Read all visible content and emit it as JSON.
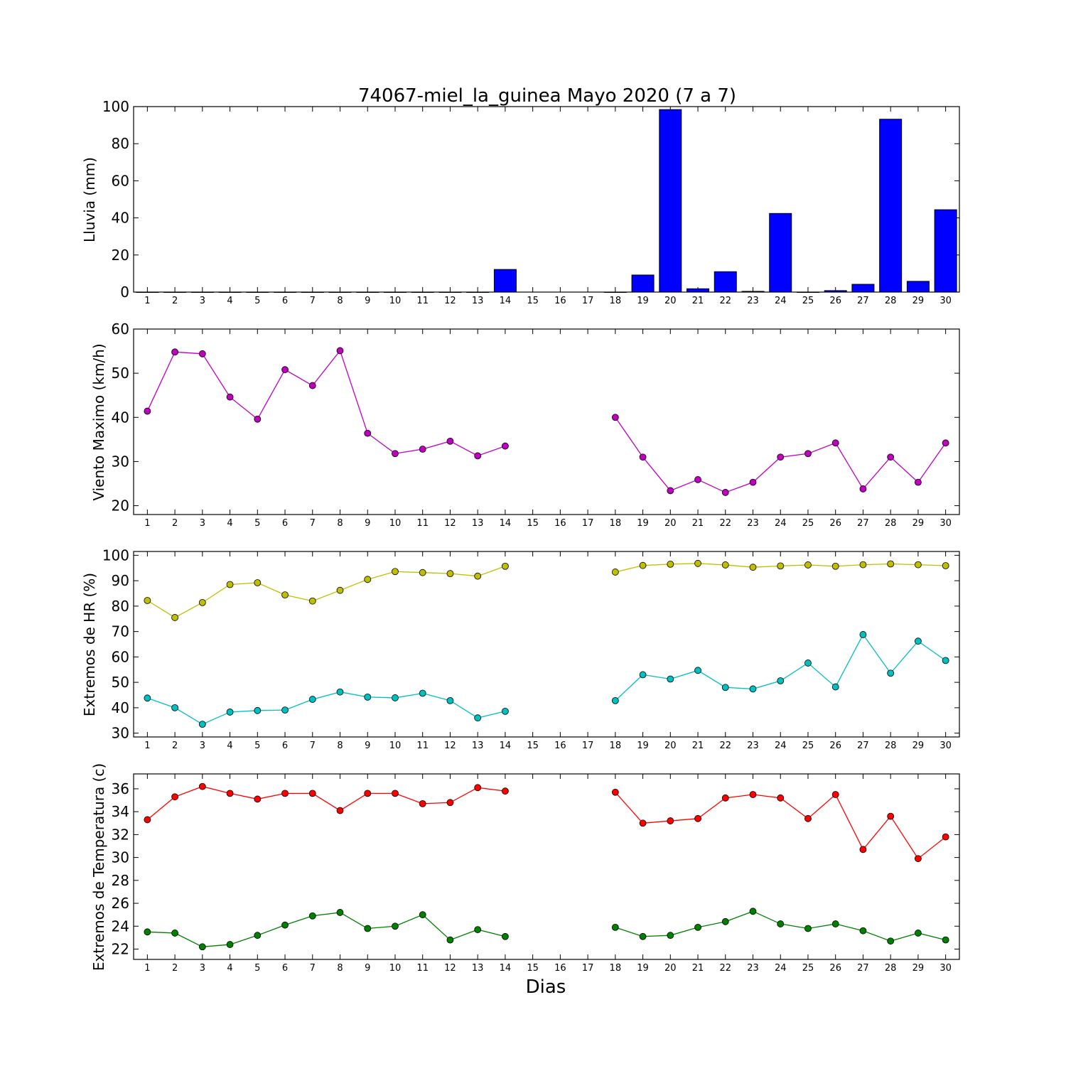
{
  "chart_data": [
    {
      "type": "bar",
      "title": "74067-miel_la_guinea Mayo 2020  (7 a 7)",
      "ylabel": "Lluvia (mm)",
      "ylim": [
        0,
        100
      ],
      "yticks": [
        0,
        20,
        40,
        60,
        80,
        100
      ],
      "x": [
        1,
        2,
        3,
        4,
        5,
        6,
        7,
        8,
        9,
        10,
        11,
        12,
        13,
        14,
        15,
        16,
        17,
        18,
        19,
        20,
        21,
        22,
        23,
        24,
        25,
        26,
        27,
        28,
        29,
        30
      ],
      "series": [
        {
          "color": "#0000ff",
          "values": [
            0,
            0,
            0,
            0,
            0,
            0,
            0,
            0,
            0,
            0,
            0,
            0,
            0,
            12.2,
            null,
            null,
            null,
            0,
            9.2,
            98.4,
            1.8,
            11.0,
            0.4,
            42.4,
            0,
            0.8,
            4.2,
            93.2,
            5.8,
            44.4
          ]
        }
      ]
    },
    {
      "type": "line",
      "ylabel": "Viento Maximo (km/h)",
      "ylim": [
        18,
        60
      ],
      "yticks": [
        20,
        30,
        40,
        50,
        60
      ],
      "x": [
        1,
        2,
        3,
        4,
        5,
        6,
        7,
        8,
        9,
        10,
        11,
        12,
        13,
        14,
        15,
        16,
        17,
        18,
        19,
        20,
        21,
        22,
        23,
        24,
        25,
        26,
        27,
        28,
        29,
        30
      ],
      "series": [
        {
          "color": "#bf00bf",
          "values": [
            41.4,
            54.8,
            54.4,
            44.6,
            39.6,
            50.8,
            47.2,
            55.1,
            36.4,
            31.8,
            32.8,
            34.6,
            31.3,
            33.5,
            null,
            null,
            null,
            40.0,
            31.0,
            23.4,
            25.9,
            23.0,
            25.3,
            31.0,
            31.8,
            34.2,
            23.8,
            31.0,
            25.3,
            34.2
          ]
        }
      ]
    },
    {
      "type": "line",
      "ylabel": "Extremos de HR (%)",
      "ylim": [
        28.5,
        101.5
      ],
      "yticks": [
        30,
        40,
        50,
        60,
        70,
        80,
        90,
        100
      ],
      "x": [
        1,
        2,
        3,
        4,
        5,
        6,
        7,
        8,
        9,
        10,
        11,
        12,
        13,
        14,
        15,
        16,
        17,
        18,
        19,
        20,
        21,
        22,
        23,
        24,
        25,
        26,
        27,
        28,
        29,
        30
      ],
      "series": [
        {
          "color": "#bfbf00",
          "values": [
            82.2,
            75.5,
            81.4,
            88.5,
            89.2,
            84.4,
            82.0,
            86.2,
            90.5,
            93.6,
            93.2,
            92.8,
            91.8,
            95.7,
            null,
            null,
            null,
            93.4,
            96.0,
            96.5,
            96.8,
            96.2,
            95.3,
            95.8,
            96.2,
            95.7,
            96.3,
            96.6,
            96.3,
            95.9
          ]
        },
        {
          "color": "#00bfbf",
          "values": [
            43.8,
            40.0,
            33.5,
            38.3,
            38.9,
            39.1,
            43.3,
            46.2,
            44.2,
            43.9,
            45.7,
            42.8,
            36.0,
            38.6,
            null,
            null,
            null,
            42.8,
            53.0,
            51.3,
            54.7,
            48.0,
            47.4,
            50.6,
            57.6,
            48.2,
            68.8,
            53.6,
            66.2,
            58.6
          ]
        }
      ]
    },
    {
      "type": "line",
      "ylabel": "Extremos de Temperatura (c)",
      "ylim": [
        21.1,
        37.3
      ],
      "yticks": [
        22,
        24,
        26,
        28,
        30,
        32,
        34,
        36
      ],
      "x": [
        1,
        2,
        3,
        4,
        5,
        6,
        7,
        8,
        9,
        10,
        11,
        12,
        13,
        14,
        15,
        16,
        17,
        18,
        19,
        20,
        21,
        22,
        23,
        24,
        25,
        26,
        27,
        28,
        29,
        30
      ],
      "series": [
        {
          "color": "#ff0000",
          "values": [
            33.3,
            35.3,
            36.2,
            35.6,
            35.1,
            35.6,
            35.6,
            34.1,
            35.6,
            35.6,
            34.7,
            34.8,
            36.1,
            35.8,
            null,
            null,
            null,
            35.7,
            33.0,
            33.2,
            33.4,
            35.2,
            35.5,
            35.2,
            33.4,
            35.5,
            30.7,
            33.6,
            29.9,
            31.8
          ]
        },
        {
          "color": "#008000",
          "values": [
            23.5,
            23.4,
            22.2,
            22.4,
            23.2,
            24.1,
            24.9,
            25.2,
            23.8,
            24.0,
            25.0,
            22.8,
            23.7,
            23.1,
            null,
            null,
            null,
            23.9,
            23.1,
            23.2,
            23.9,
            24.4,
            25.3,
            24.2,
            23.8,
            24.2,
            23.6,
            22.7,
            23.4,
            22.8
          ]
        }
      ]
    }
  ],
  "xlabel": "Dias",
  "frame_color": "#000000",
  "bar_edge_color": "#000000",
  "marker_edge_color": "#000000"
}
